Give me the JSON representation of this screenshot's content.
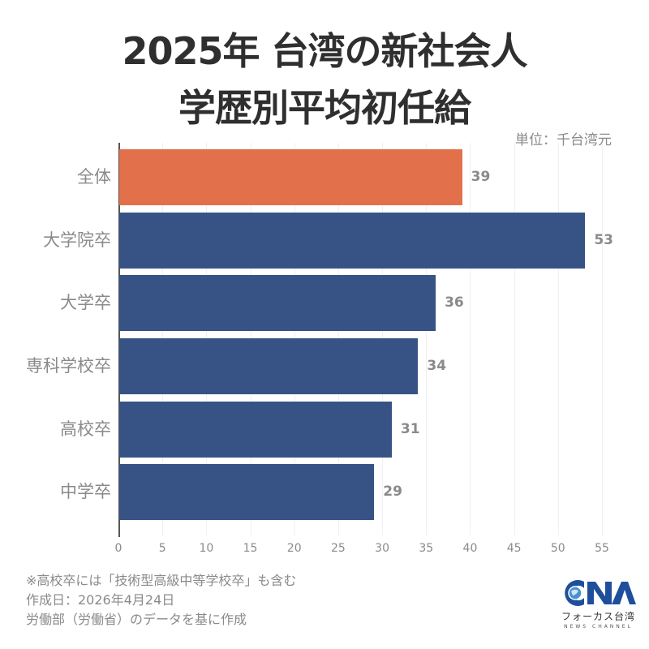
{
  "header": {
    "title_line1": "2025年 台湾の新社会人",
    "title_line2": "学歴別平均初任給",
    "unit": "単位：千台湾元"
  },
  "colors": {
    "highlight": "#E2714B",
    "bar": "#375385",
    "text": "#8a8a8a",
    "title": "#2f2f2f"
  },
  "chart_data": {
    "type": "bar",
    "orientation": "horizontal",
    "title": "2025年 台湾の新社会人 学歴別平均初任給",
    "unit": "単位：千台湾元",
    "categories": [
      "全体",
      "大学院卒",
      "大学卒",
      "専科学校卒",
      "高校卒",
      "中学卒"
    ],
    "values": [
      39,
      53,
      36,
      34,
      31,
      29
    ],
    "highlight_category": "全体",
    "xlabel": "",
    "ylabel": "",
    "xlim": [
      0,
      55
    ],
    "xticks": [
      "0",
      "5",
      "10",
      "15",
      "20",
      "25",
      "30",
      "35",
      "40",
      "45",
      "50",
      "55"
    ],
    "grid": true,
    "legend": false
  },
  "footer": {
    "note": "※高校卒には「技術型高級中等学校卒」も含む",
    "created": "作成日：2026年4月24日",
    "source": "労働部（労働省）のデータを基に作成"
  },
  "logo": {
    "mark": "CNA",
    "name_ja": "フォーカス台湾",
    "name_en": "NEWS CHANNEL"
  }
}
